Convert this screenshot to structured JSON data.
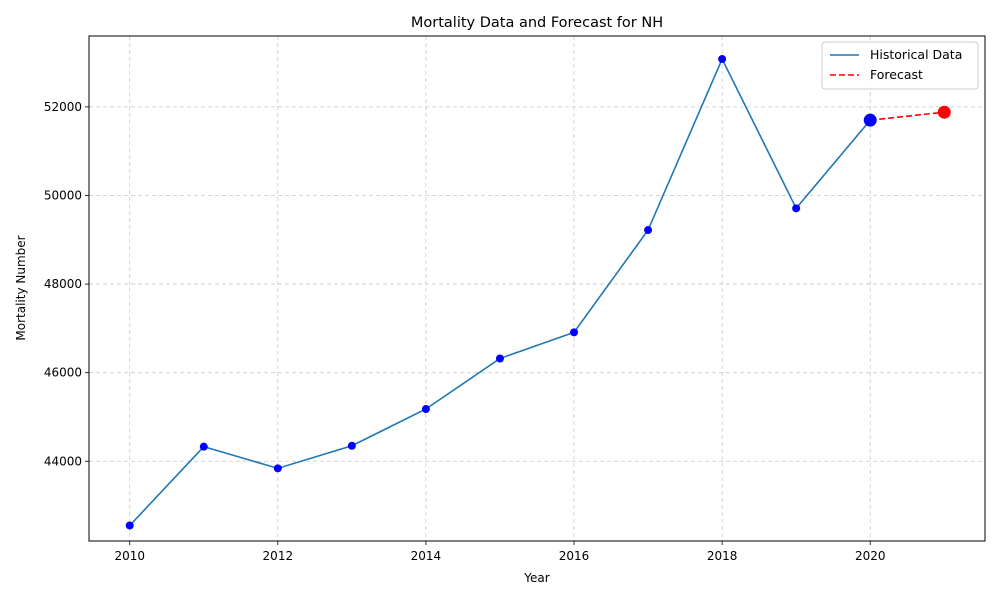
{
  "chart_data": {
    "type": "line",
    "title": "Mortality Data and Forecast for NH",
    "xlabel": "Year",
    "ylabel": "Mortality Number",
    "xlim": [
      2009.45,
      2021.55
    ],
    "ylim": [
      42200,
      53600
    ],
    "xticks": [
      2010,
      2012,
      2014,
      2016,
      2018,
      2020
    ],
    "yticks": [
      44000,
      46000,
      48000,
      50000,
      52000
    ],
    "grid": true,
    "legend_position": "top-right",
    "series": [
      {
        "name": "Historical Data",
        "style": "solid",
        "color": "#1f77b4",
        "marker_color": "#0000ff",
        "x": [
          2010,
          2011,
          2012,
          2013,
          2014,
          2015,
          2016,
          2017,
          2018,
          2019,
          2020
        ],
        "y": [
          42550,
          44330,
          43840,
          44350,
          45180,
          46320,
          46910,
          49220,
          53080,
          49710,
          51700
        ]
      },
      {
        "name": "Forecast",
        "style": "dashed",
        "color": "#ff0000",
        "marker_color": "#ff0000",
        "x": [
          2020,
          2021
        ],
        "y": [
          51700,
          51880
        ]
      }
    ],
    "highlight_points": [
      {
        "x": 2020,
        "y": 51700,
        "color": "#0000ff"
      },
      {
        "x": 2021,
        "y": 51880,
        "color": "#ff0000"
      }
    ]
  }
}
